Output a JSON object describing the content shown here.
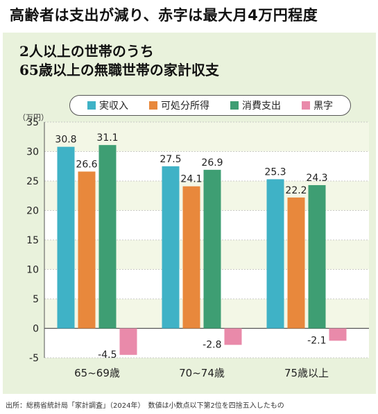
{
  "headline": "高齢者は支出が減り、赤字は最大月4万円程度",
  "panel_title": [
    "2人以上の世帯のうち",
    "65歳以上の無職世帯の家計収支"
  ],
  "unit_label": "（万円）",
  "footnote": "出所：総務省統計局「家計調査」（2024年）　数値は小数点以下第2位を四捨五入したもの",
  "chart_data": {
    "type": "bar",
    "categories": [
      "65~69歳",
      "70~74歳",
      "75歳以上"
    ],
    "series": [
      {
        "name": "実収入",
        "color": "#3fb2c6",
        "values": [
          30.8,
          27.5,
          25.3
        ]
      },
      {
        "name": "可処分所得",
        "color": "#e8883c",
        "values": [
          26.6,
          24.1,
          22.2
        ]
      },
      {
        "name": "消費支出",
        "color": "#3e9e73",
        "values": [
          31.1,
          26.9,
          24.3
        ]
      },
      {
        "name": "黒字",
        "color": "#e98aaa",
        "values": [
          -4.5,
          -2.8,
          -2.1
        ]
      }
    ],
    "ylim": [
      -5,
      35
    ],
    "yticks": [
      "35",
      "30",
      "25",
      "20",
      "15",
      "10",
      "5",
      "0",
      "-5"
    ],
    "value_labels": [
      [
        "30.8",
        "27.5",
        "25.3"
      ],
      [
        "26.6",
        "24.1",
        "22.2"
      ],
      [
        "31.1",
        "26.9",
        "24.3"
      ],
      [
        "-4.5",
        "-2.8",
        "-2.1"
      ]
    ],
    "grid": true,
    "legend": "top"
  }
}
